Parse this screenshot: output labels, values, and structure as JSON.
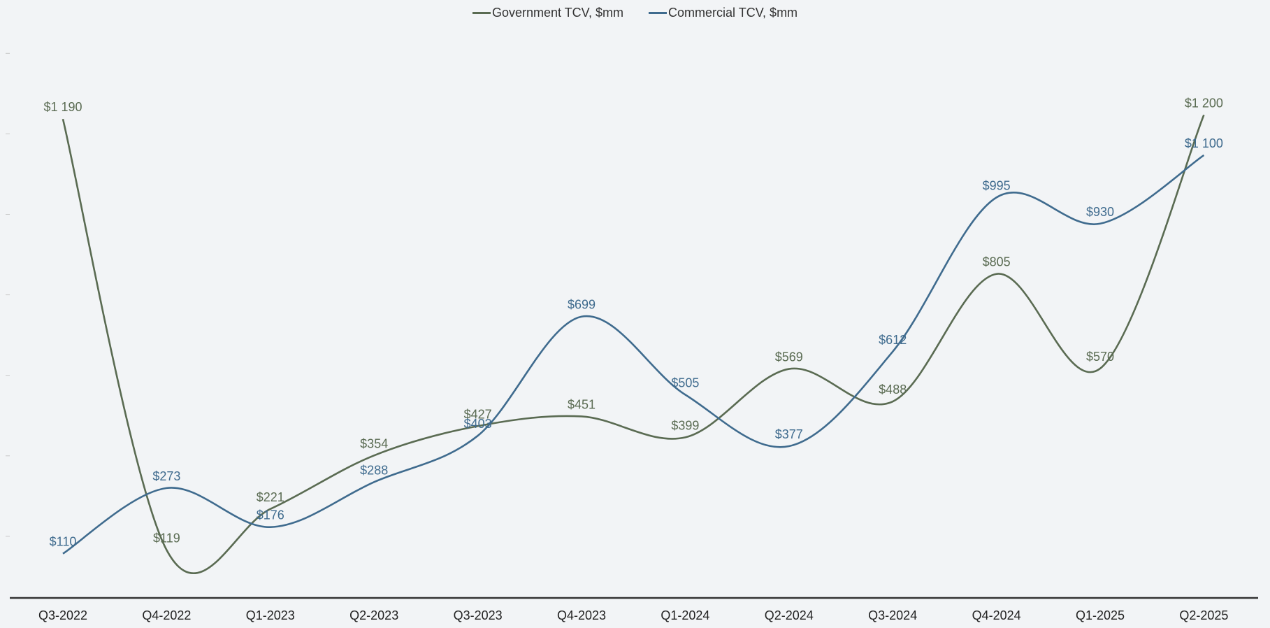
{
  "chart_data": {
    "type": "line",
    "smooth": true,
    "categories": [
      "Q3-2022",
      "Q4-2022",
      "Q1-2023",
      "Q2-2023",
      "Q3-2023",
      "Q4-2023",
      "Q1-2024",
      "Q2-2024",
      "Q3-2024",
      "Q4-2024",
      "Q1-2025",
      "Q2-2025"
    ],
    "series": [
      {
        "name": "Government TCV, $mm",
        "color": "#5a6b52",
        "values": [
          1190,
          119,
          221,
          354,
          427,
          451,
          399,
          569,
          488,
          805,
          570,
          1200
        ],
        "labels": [
          "$1 190",
          "$119",
          "$221",
          "$354",
          "$427",
          "$451",
          "$399",
          "$569",
          "$488",
          "$805",
          "$570",
          "$1 200"
        ]
      },
      {
        "name": "Commercial TCV, $mm",
        "color": "#3f6b8e",
        "values": [
          110,
          273,
          176,
          288,
          403,
          699,
          505,
          377,
          612,
          995,
          930,
          1100
        ],
        "labels": [
          "$110",
          "$273",
          "$176",
          "$288",
          "$403",
          "$699",
          "$505",
          "$377",
          "$612",
          "$995",
          "$930",
          "$1 100"
        ]
      }
    ],
    "ylim": [
      0,
      1400
    ],
    "legend_position": "top-center",
    "grid": false,
    "title": "",
    "xlabel": "",
    "ylabel": ""
  }
}
